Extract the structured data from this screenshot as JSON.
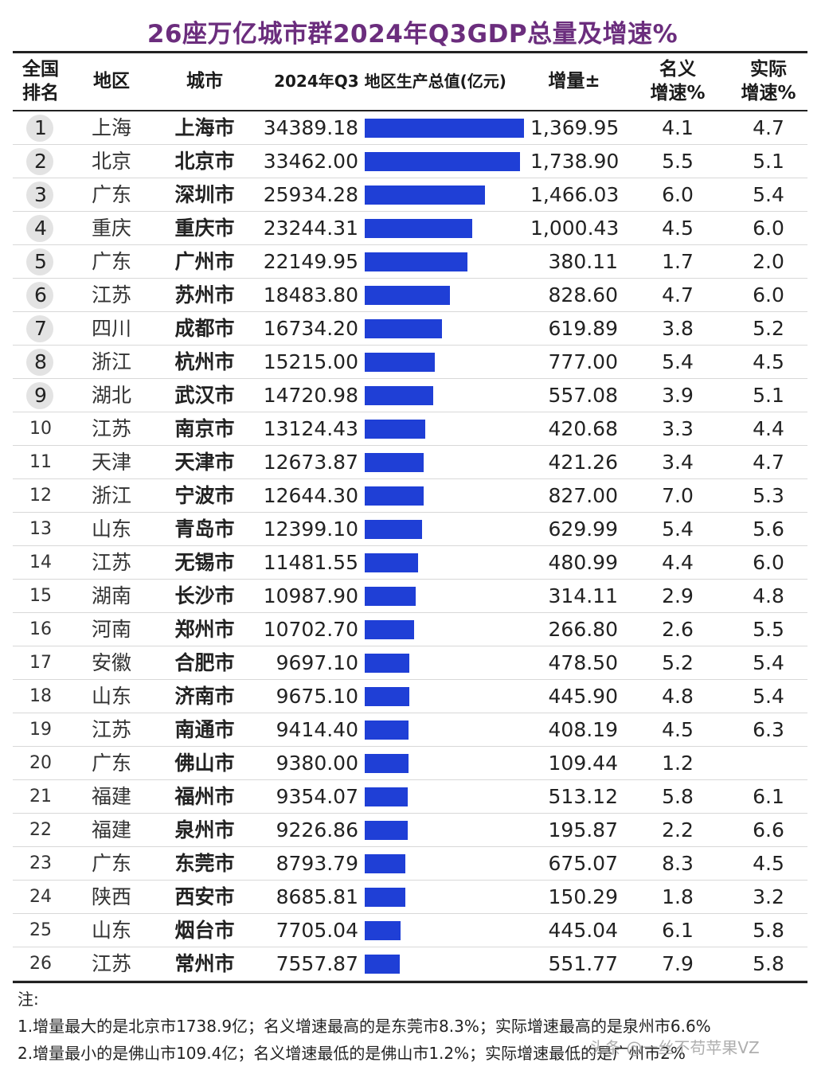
{
  "title": "26座万亿城市群2024年Q3GDP总量及增速%",
  "headers": {
    "rank": "全国\n排名",
    "region": "地区",
    "city": "城市",
    "gdp": "2024年Q3 地区生产总值(亿元)",
    "increase": "增量±",
    "nominal": "名义\n增速%",
    "real": "实际\n增速%"
  },
  "accent_colors": {
    "bar": "#1f3fd6",
    "title": "#6b2d7d"
  },
  "chart_data": {
    "type": "table",
    "title": "26座万亿城市群2024年Q3GDP总量及增速%",
    "columns": [
      "全国排名",
      "地区",
      "城市",
      "2024年Q3 地区生产总值(亿元)",
      "增量±",
      "名义增速%",
      "实际增速%"
    ],
    "rows": [
      {
        "rank": "1",
        "region": "上海",
        "city": "上海市",
        "gdp": "34389.18",
        "gdp_value": 34389.18,
        "increase": "1,369.95",
        "nominal": "4.1",
        "real": "4.7"
      },
      {
        "rank": "2",
        "region": "北京",
        "city": "北京市",
        "gdp": "33462.00",
        "gdp_value": 33462.0,
        "increase": "1,738.90",
        "nominal": "5.5",
        "real": "5.1"
      },
      {
        "rank": "3",
        "region": "广东",
        "city": "深圳市",
        "gdp": "25934.28",
        "gdp_value": 25934.28,
        "increase": "1,466.03",
        "nominal": "6.0",
        "real": "5.4"
      },
      {
        "rank": "4",
        "region": "重庆",
        "city": "重庆市",
        "gdp": "23244.31",
        "gdp_value": 23244.31,
        "increase": "1,000.43",
        "nominal": "4.5",
        "real": "6.0"
      },
      {
        "rank": "5",
        "region": "广东",
        "city": "广州市",
        "gdp": "22149.95",
        "gdp_value": 22149.95,
        "increase": "380.11",
        "nominal": "1.7",
        "real": "2.0"
      },
      {
        "rank": "6",
        "region": "江苏",
        "city": "苏州市",
        "gdp": "18483.80",
        "gdp_value": 18483.8,
        "increase": "828.60",
        "nominal": "4.7",
        "real": "6.0"
      },
      {
        "rank": "7",
        "region": "四川",
        "city": "成都市",
        "gdp": "16734.20",
        "gdp_value": 16734.2,
        "increase": "619.89",
        "nominal": "3.8",
        "real": "5.2"
      },
      {
        "rank": "8",
        "region": "浙江",
        "city": "杭州市",
        "gdp": "15215.00",
        "gdp_value": 15215.0,
        "increase": "777.00",
        "nominal": "5.4",
        "real": "4.5"
      },
      {
        "rank": "9",
        "region": "湖北",
        "city": "武汉市",
        "gdp": "14720.98",
        "gdp_value": 14720.98,
        "increase": "557.08",
        "nominal": "3.9",
        "real": "5.1"
      },
      {
        "rank": "10",
        "region": "江苏",
        "city": "南京市",
        "gdp": "13124.43",
        "gdp_value": 13124.43,
        "increase": "420.68",
        "nominal": "3.3",
        "real": "4.4"
      },
      {
        "rank": "11",
        "region": "天津",
        "city": "天津市",
        "gdp": "12673.87",
        "gdp_value": 12673.87,
        "increase": "421.26",
        "nominal": "3.4",
        "real": "4.7"
      },
      {
        "rank": "12",
        "region": "浙江",
        "city": "宁波市",
        "gdp": "12644.30",
        "gdp_value": 12644.3,
        "increase": "827.00",
        "nominal": "7.0",
        "real": "5.3"
      },
      {
        "rank": "13",
        "region": "山东",
        "city": "青岛市",
        "gdp": "12399.10",
        "gdp_value": 12399.1,
        "increase": "629.99",
        "nominal": "5.4",
        "real": "5.6"
      },
      {
        "rank": "14",
        "region": "江苏",
        "city": "无锡市",
        "gdp": "11481.55",
        "gdp_value": 11481.55,
        "increase": "480.99",
        "nominal": "4.4",
        "real": "6.0"
      },
      {
        "rank": "15",
        "region": "湖南",
        "city": "长沙市",
        "gdp": "10987.90",
        "gdp_value": 10987.9,
        "increase": "314.11",
        "nominal": "2.9",
        "real": "4.8"
      },
      {
        "rank": "16",
        "region": "河南",
        "city": "郑州市",
        "gdp": "10702.70",
        "gdp_value": 10702.7,
        "increase": "266.80",
        "nominal": "2.6",
        "real": "5.5"
      },
      {
        "rank": "17",
        "region": "安徽",
        "city": "合肥市",
        "gdp": "9697.10",
        "gdp_value": 9697.1,
        "increase": "478.50",
        "nominal": "5.2",
        "real": "5.4"
      },
      {
        "rank": "18",
        "region": "山东",
        "city": "济南市",
        "gdp": "9675.10",
        "gdp_value": 9675.1,
        "increase": "445.90",
        "nominal": "4.8",
        "real": "5.4"
      },
      {
        "rank": "19",
        "region": "江苏",
        "city": "南通市",
        "gdp": "9414.40",
        "gdp_value": 9414.4,
        "increase": "408.19",
        "nominal": "4.5",
        "real": "6.3"
      },
      {
        "rank": "20",
        "region": "广东",
        "city": "佛山市",
        "gdp": "9380.00",
        "gdp_value": 9380.0,
        "increase": "109.44",
        "nominal": "1.2",
        "real": ""
      },
      {
        "rank": "21",
        "region": "福建",
        "city": "福州市",
        "gdp": "9354.07",
        "gdp_value": 9354.07,
        "increase": "513.12",
        "nominal": "5.8",
        "real": "6.1"
      },
      {
        "rank": "22",
        "region": "福建",
        "city": "泉州市",
        "gdp": "9226.86",
        "gdp_value": 9226.86,
        "increase": "195.87",
        "nominal": "2.2",
        "real": "6.6"
      },
      {
        "rank": "23",
        "region": "广东",
        "city": "东莞市",
        "gdp": "8793.79",
        "gdp_value": 8793.79,
        "increase": "675.07",
        "nominal": "8.3",
        "real": "4.5"
      },
      {
        "rank": "24",
        "region": "陕西",
        "city": "西安市",
        "gdp": "8685.81",
        "gdp_value": 8685.81,
        "increase": "150.29",
        "nominal": "1.8",
        "real": "3.2"
      },
      {
        "rank": "25",
        "region": "山东",
        "city": "烟台市",
        "gdp": "7705.04",
        "gdp_value": 7705.04,
        "increase": "445.04",
        "nominal": "6.1",
        "real": "5.8"
      },
      {
        "rank": "26",
        "region": "江苏",
        "city": "常州市",
        "gdp": "7557.87",
        "gdp_value": 7557.87,
        "increase": "551.77",
        "nominal": "7.9",
        "real": "5.8"
      }
    ]
  },
  "notes": {
    "label": "注:",
    "line1": "1.增量最大的是北京市1738.9亿；名义增速最高的是东莞市8.3%；实际增速最高的是泉州市6.6%",
    "line2": "2.增量最小的是佛山市109.4亿；名义增速最低的是佛山市1.2%；实际增速最低的是广州市2%"
  },
  "watermark": "头条 @一丝不苟苹果VZ"
}
